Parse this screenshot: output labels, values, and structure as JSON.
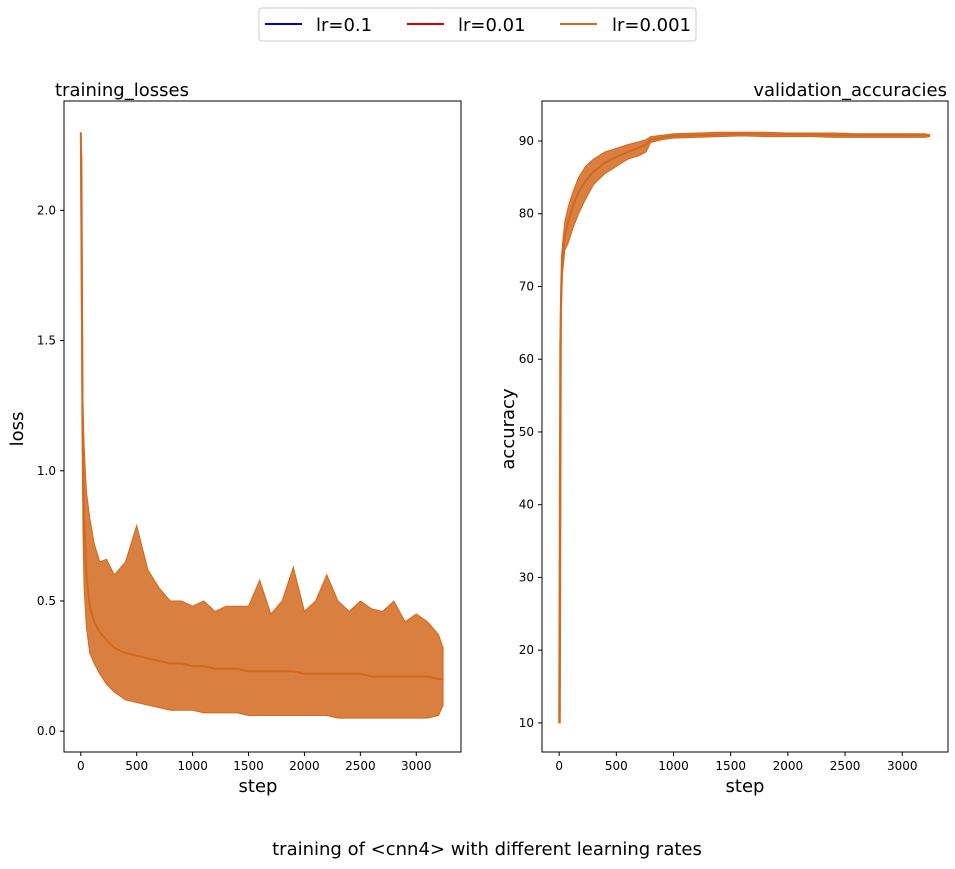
{
  "figure": {
    "suptitle": "training of <cnn4> with different learning rates"
  },
  "legend": {
    "placement": "top-center",
    "entries": [
      {
        "label": "lr=0.1",
        "color": "#0000cc"
      },
      {
        "label": "lr=0.01",
        "color": "#dd0000"
      },
      {
        "label": "lr=0.001",
        "color": "#d2691e"
      }
    ]
  },
  "chart_data": [
    {
      "type": "line",
      "title": "training_losses",
      "title_align": "left",
      "xlabel": "step",
      "ylabel": "loss",
      "xlim": [
        -150,
        3400
      ],
      "ylim": [
        -0.08,
        2.42
      ],
      "xticks": [
        0,
        500,
        1000,
        1500,
        2000,
        2500,
        3000
      ],
      "yticks": [
        0.0,
        0.5,
        1.0,
        1.5,
        2.0
      ],
      "ytick_labels": [
        "0.0",
        "0.5",
        "1.0",
        "1.5",
        "2.0"
      ],
      "grid": false,
      "series": [
        {
          "name": "lr=0.001",
          "color": "#d2691e",
          "x": [
            0,
            10,
            20,
            30,
            50,
            80,
            120,
            170,
            230,
            300,
            400,
            500,
            600,
            700,
            800,
            900,
            1000,
            1100,
            1200,
            1300,
            1400,
            1500,
            1600,
            1700,
            1800,
            1900,
            2000,
            2100,
            2200,
            2300,
            2400,
            2500,
            2600,
            2700,
            2800,
            2900,
            3000,
            3100,
            3200,
            3240
          ],
          "y": [
            2.3,
            1.6,
            1.0,
            0.8,
            0.6,
            0.48,
            0.42,
            0.38,
            0.35,
            0.32,
            0.3,
            0.29,
            0.28,
            0.27,
            0.26,
            0.26,
            0.25,
            0.25,
            0.24,
            0.24,
            0.24,
            0.23,
            0.23,
            0.23,
            0.23,
            0.23,
            0.22,
            0.22,
            0.22,
            0.22,
            0.22,
            0.22,
            0.21,
            0.21,
            0.21,
            0.21,
            0.21,
            0.21,
            0.2,
            0.2
          ],
          "band_lower": [
            2.2,
            1.2,
            0.75,
            0.55,
            0.4,
            0.3,
            0.26,
            0.22,
            0.18,
            0.15,
            0.12,
            0.11,
            0.1,
            0.09,
            0.08,
            0.08,
            0.08,
            0.07,
            0.07,
            0.07,
            0.07,
            0.06,
            0.06,
            0.06,
            0.06,
            0.06,
            0.06,
            0.06,
            0.06,
            0.05,
            0.05,
            0.05,
            0.05,
            0.05,
            0.05,
            0.05,
            0.05,
            0.05,
            0.06,
            0.1
          ],
          "band_upper": [
            2.3,
            2.2,
            1.26,
            1.1,
            0.92,
            0.82,
            0.72,
            0.65,
            0.66,
            0.6,
            0.65,
            0.79,
            0.62,
            0.55,
            0.5,
            0.5,
            0.48,
            0.5,
            0.46,
            0.48,
            0.48,
            0.48,
            0.58,
            0.45,
            0.5,
            0.63,
            0.46,
            0.5,
            0.6,
            0.5,
            0.46,
            0.5,
            0.47,
            0.46,
            0.5,
            0.42,
            0.45,
            0.42,
            0.37,
            0.32
          ]
        }
      ]
    },
    {
      "type": "line",
      "title": "validation_accuracies",
      "title_align": "right",
      "xlabel": "step",
      "ylabel": "accuracy",
      "xlim": [
        -150,
        3400
      ],
      "ylim": [
        6,
        95.5
      ],
      "xticks": [
        0,
        500,
        1000,
        1500,
        2000,
        2500,
        3000
      ],
      "yticks": [
        10,
        20,
        30,
        40,
        50,
        60,
        70,
        80,
        90
      ],
      "grid": false,
      "series": [
        {
          "name": "lr=0.001",
          "color": "#d2691e",
          "x": [
            0,
            10,
            20,
            30,
            50,
            80,
            120,
            170,
            230,
            300,
            400,
            500,
            600,
            700,
            760,
            800,
            900,
            1000,
            1200,
            1400,
            1600,
            1800,
            2000,
            2200,
            2400,
            2600,
            2800,
            3000,
            3200,
            3240
          ],
          "y": [
            10,
            62,
            70,
            74,
            77,
            79,
            81,
            83,
            84.5,
            85.8,
            87,
            87.8,
            88.5,
            89.1,
            89.5,
            90.2,
            90.5,
            90.7,
            90.8,
            90.9,
            91,
            90.9,
            90.9,
            90.9,
            90.8,
            90.8,
            90.8,
            90.8,
            90.8,
            90.8
          ],
          "band_lower": [
            10,
            10,
            67,
            72,
            75,
            76,
            78,
            80,
            82,
            84,
            85.5,
            86.5,
            87.5,
            88,
            88.5,
            89.8,
            90.2,
            90.4,
            90.5,
            90.6,
            90.7,
            90.6,
            90.6,
            90.6,
            90.5,
            90.5,
            90.5,
            90.5,
            90.5,
            90.6
          ],
          "band_upper": [
            10,
            67,
            74,
            76,
            79,
            81,
            83,
            85,
            86.5,
            87.5,
            88.5,
            89,
            89.5,
            89.9,
            90.2,
            90.6,
            90.8,
            91,
            91.1,
            91.2,
            91.2,
            91.2,
            91.1,
            91.1,
            91.1,
            91,
            91,
            91,
            91,
            90.9
          ]
        }
      ]
    }
  ]
}
